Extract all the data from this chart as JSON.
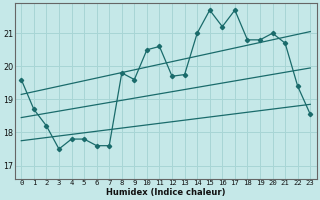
{
  "xlabel": "Humidex (Indice chaleur)",
  "bg_color": "#c5e8e8",
  "grid_color": "#a8d5d5",
  "line_color": "#1a6b6b",
  "spine_color": "#666666",
  "x_ticks": [
    0,
    1,
    2,
    3,
    4,
    5,
    6,
    7,
    8,
    9,
    10,
    11,
    12,
    13,
    14,
    15,
    16,
    17,
    18,
    19,
    20,
    21,
    22,
    23
  ],
  "y_ticks": [
    17,
    18,
    19,
    20,
    21
  ],
  "ylim": [
    16.6,
    21.9
  ],
  "xlim": [
    -0.5,
    23.5
  ],
  "main_line_x": [
    0,
    1,
    2,
    3,
    4,
    5,
    6,
    7,
    8,
    9,
    10,
    11,
    12,
    13,
    14,
    15,
    16,
    17,
    18,
    19,
    20,
    21,
    22,
    23
  ],
  "main_line_y": [
    19.6,
    18.7,
    18.2,
    17.5,
    17.8,
    17.8,
    17.6,
    17.6,
    19.8,
    19.6,
    20.5,
    20.6,
    19.7,
    19.75,
    21.0,
    21.7,
    21.2,
    21.7,
    20.8,
    20.8,
    21.0,
    20.7,
    19.4,
    18.55
  ],
  "upper_line_x": [
    0,
    23
  ],
  "upper_line_y": [
    19.15,
    21.05
  ],
  "lower_line_x": [
    0,
    23
  ],
  "lower_line_y": [
    17.75,
    18.85
  ],
  "mid_line_x": [
    0,
    23
  ],
  "mid_line_y": [
    18.45,
    19.95
  ],
  "xlabel_fontsize": 6.0,
  "tick_fontsize": 5.2,
  "ytick_fontsize": 5.8,
  "line_width": 0.9,
  "marker_size": 2.2
}
